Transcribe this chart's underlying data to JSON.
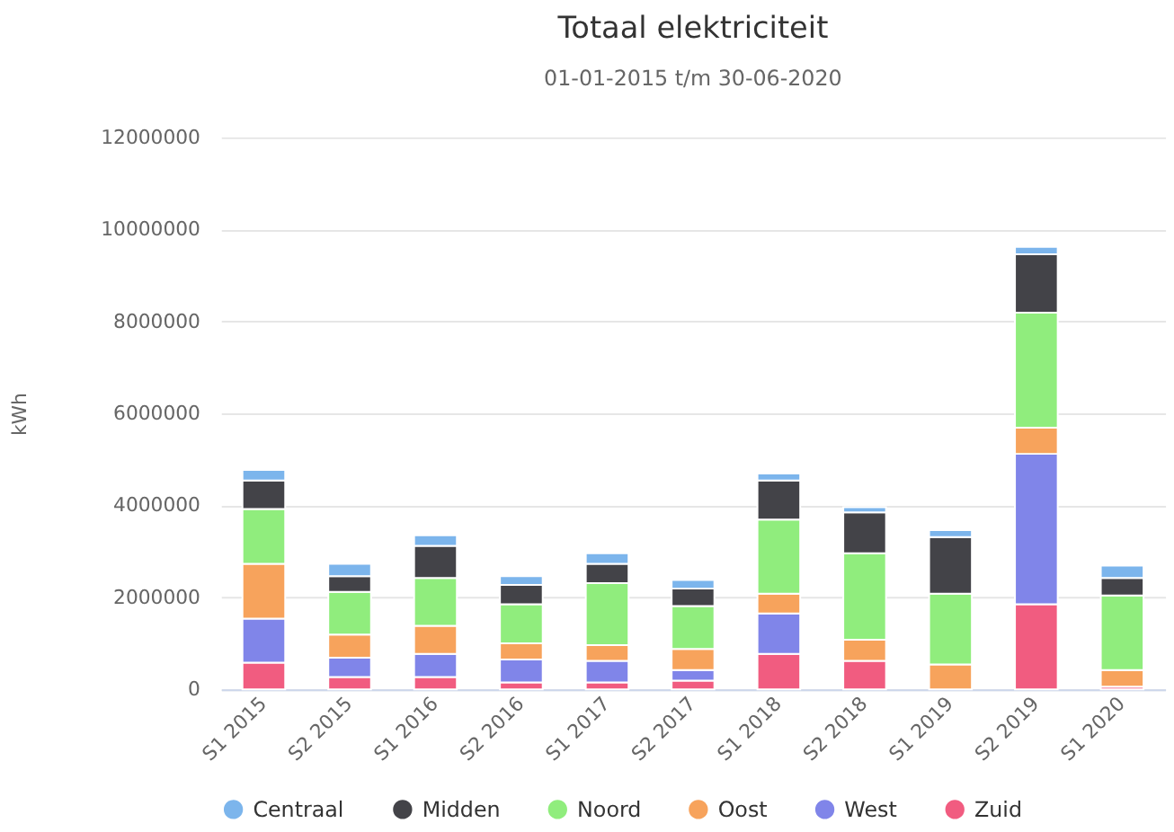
{
  "chart_data": {
    "type": "bar",
    "title": "Totaal elektriciteit",
    "subtitle": "01-01-2015 t/m 30-06-2020",
    "ylabel": "kWh",
    "categories": [
      "S1 2015",
      "S2 2015",
      "S1 2016",
      "S2 2016",
      "S1 2017",
      "S2 2017",
      "S1 2018",
      "S2 2018",
      "S1 2019",
      "S2 2019",
      "S1 2020"
    ],
    "stacked": true,
    "series": [
      {
        "name": "Zuid",
        "color": "#f15c80",
        "values": [
          580000,
          270000,
          270000,
          150000,
          150000,
          190000,
          770000,
          620000,
          0,
          1850000,
          60000
        ]
      },
      {
        "name": "West",
        "color": "#8085e9",
        "values": [
          960000,
          420000,
          500000,
          500000,
          470000,
          230000,
          880000,
          0,
          0,
          3270000,
          null
        ]
      },
      {
        "name": "Oost",
        "color": "#f7a35c",
        "values": [
          1190000,
          500000,
          610000,
          350000,
          340000,
          460000,
          430000,
          460000,
          540000,
          570000,
          360000
        ]
      },
      {
        "name": "Noord",
        "color": "#90ed7d",
        "values": [
          1190000,
          930000,
          1040000,
          850000,
          1350000,
          930000,
          1610000,
          1880000,
          1540000,
          2500000,
          1620000
        ]
      },
      {
        "name": "Midden",
        "color": "#434348",
        "values": [
          620000,
          340000,
          700000,
          420000,
          420000,
          380000,
          850000,
          890000,
          1230000,
          1270000,
          380000
        ]
      },
      {
        "name": "Centraal",
        "color": "#7cb5ec",
        "values": [
          230000,
          270000,
          230000,
          190000,
          230000,
          190000,
          150000,
          110000,
          150000,
          160000,
          270000
        ]
      }
    ],
    "ylim": [
      0,
      12000000
    ],
    "yticks": [
      0,
      2000000,
      4000000,
      6000000,
      8000000,
      10000000,
      12000000
    ],
    "grid": "y",
    "legend": "bottom"
  }
}
